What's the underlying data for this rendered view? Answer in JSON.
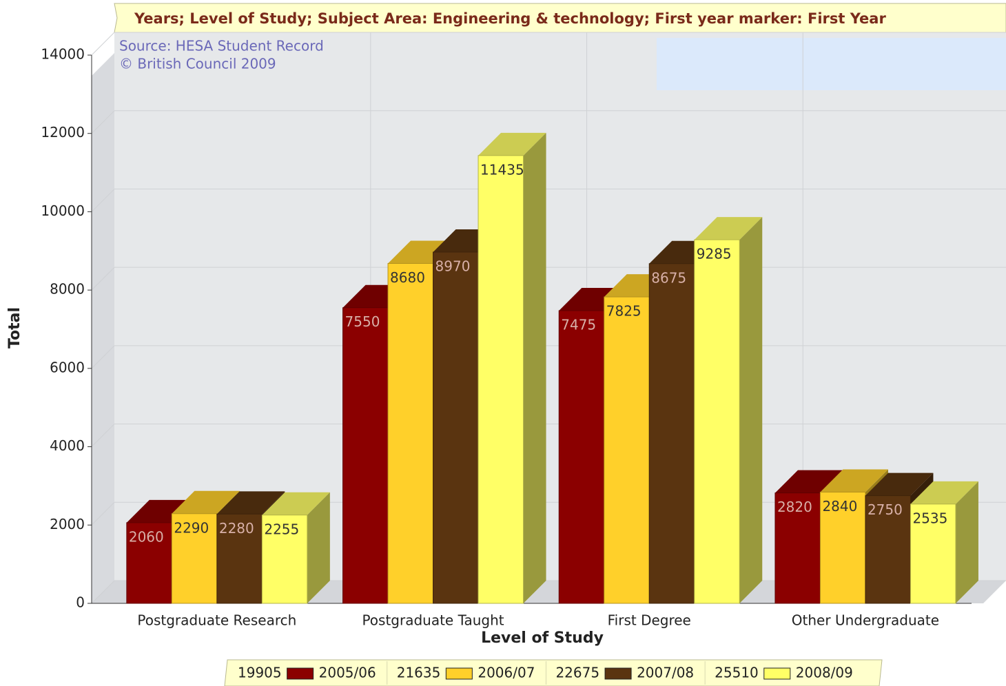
{
  "chart_data": {
    "type": "bar3d",
    "title": "Years; Level of Study; Subject Area: Engineering & technology; First year marker: First Year",
    "annotations": [
      "Source: HESA Student Record",
      "© British Council 2009"
    ],
    "xlabel": "Level of Study",
    "ylabel": "Total",
    "categories": [
      "Postgraduate Research",
      "Postgraduate Taught",
      "First Degree",
      "Other Undergraduate"
    ],
    "series": [
      {
        "name": "2005/06",
        "total": 19905,
        "color": "#8b0000",
        "values": [
          2060,
          7550,
          7475,
          2820
        ]
      },
      {
        "name": "2006/07",
        "total": 21635,
        "color": "#ffd02a",
        "values": [
          2290,
          8680,
          7825,
          2840
        ]
      },
      {
        "name": "2007/08",
        "total": 22675,
        "color": "#5a3410",
        "values": [
          2280,
          8970,
          8675,
          2750
        ]
      },
      {
        "name": "2008/09",
        "total": 25510,
        "color": "#ffff66",
        "values": [
          2255,
          11435,
          9285,
          2535
        ]
      }
    ],
    "ylim": [
      0,
      14000
    ],
    "yticks": [
      0,
      2000,
      4000,
      6000,
      8000,
      10000,
      12000,
      14000
    ],
    "grid": true
  }
}
